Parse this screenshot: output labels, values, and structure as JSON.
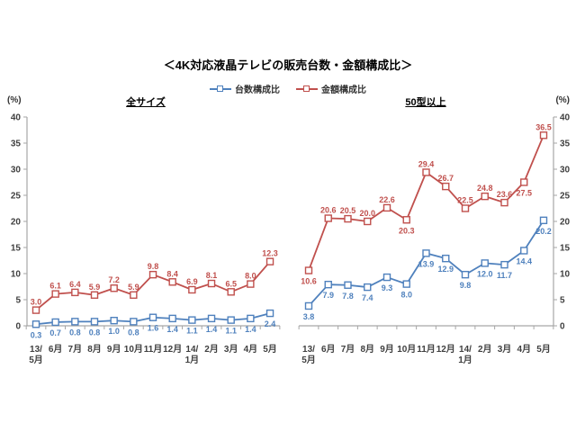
{
  "title": "＜4K対応液晶テレビの販売台数・金額構成比＞",
  "legend": [
    {
      "label": "台数構成比",
      "color": "#4F81BD"
    },
    {
      "label": "金額構成比",
      "color": "#C0504D"
    }
  ],
  "axis": {
    "unit_label": "(%)",
    "yticks": [
      0,
      5,
      10,
      15,
      20,
      25,
      30,
      35,
      40
    ],
    "axis_color": "#A6A6A6",
    "tick_text_color": "#3F3F3F"
  },
  "chart_data": [
    {
      "type": "line",
      "title": "全サイズ",
      "ylabel": "(%)",
      "ylim": [
        0,
        40
      ],
      "ytick_step": 5,
      "grid": false,
      "legend_position": "top-center",
      "categories": [
        "13/5月",
        "6月",
        "7月",
        "8月",
        "9月",
        "10月",
        "11月",
        "12月",
        "14/1月",
        "2月",
        "3月",
        "4月",
        "5月"
      ],
      "series": [
        {
          "name": "台数構成比",
          "color": "#4F81BD",
          "values": [
            0.3,
            0.7,
            0.8,
            0.8,
            1.0,
            0.8,
            1.6,
            1.4,
            1.1,
            1.4,
            1.1,
            1.4,
            2.4
          ],
          "label_position": "below",
          "label_below_indices": []
        },
        {
          "name": "金額構成比",
          "color": "#C0504D",
          "values": [
            3.0,
            6.1,
            6.4,
            5.9,
            7.2,
            5.9,
            9.8,
            8.4,
            6.9,
            8.1,
            6.5,
            8.0,
            12.3
          ],
          "label_position": "above",
          "label_below_indices": []
        }
      ]
    },
    {
      "type": "line",
      "title": "50型以上",
      "ylabel": "(%)",
      "ylim": [
        0,
        40
      ],
      "ytick_step": 5,
      "grid": false,
      "legend_position": "top-center",
      "categories": [
        "13/5月",
        "6月",
        "7月",
        "8月",
        "9月",
        "10月",
        "11月",
        "12月",
        "14/1月",
        "2月",
        "3月",
        "4月",
        "5月"
      ],
      "series": [
        {
          "name": "台数構成比",
          "color": "#4F81BD",
          "values": [
            3.8,
            7.9,
            7.8,
            7.4,
            9.3,
            8.0,
            13.9,
            12.9,
            9.8,
            12.0,
            11.7,
            14.4,
            20.2
          ],
          "label_position": "below",
          "label_below_indices": []
        },
        {
          "name": "金額構成比",
          "color": "#C0504D",
          "values": [
            10.6,
            20.6,
            20.5,
            20.0,
            22.6,
            20.3,
            29.4,
            26.7,
            22.5,
            24.8,
            23.6,
            27.5,
            36.5
          ],
          "label_position": "above",
          "label_below_indices": [
            0,
            5,
            11
          ]
        }
      ]
    }
  ]
}
